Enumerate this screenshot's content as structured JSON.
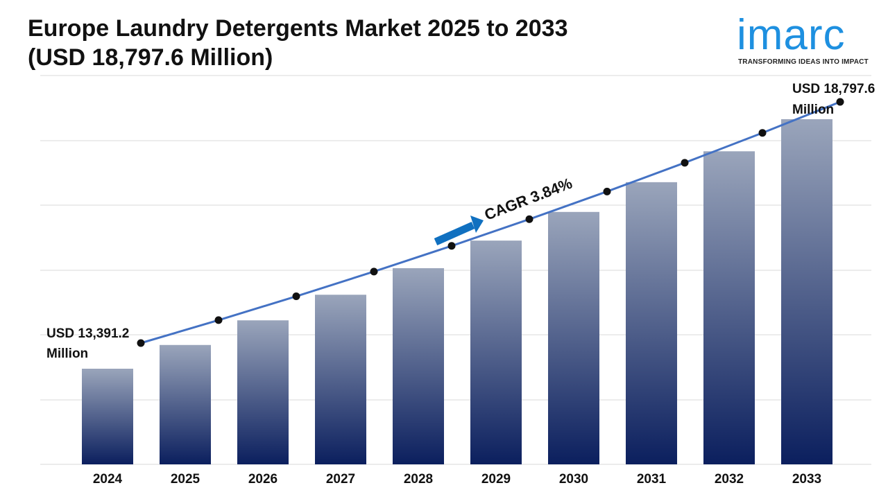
{
  "header": {
    "title_line1": "Europe Laundry Detergents Market 2025 to 2033",
    "title_line2": "(USD 18,797.6 Million)"
  },
  "logo": {
    "wordmark": "imarc",
    "tagline": "TRANSFORMING IDEAS INTO IMPACT",
    "color": "#1e90e0"
  },
  "chart_data": {
    "type": "bar",
    "title": "Europe Laundry Detergents Market 2025 to 2033 (USD 18,797.6 Million)",
    "categories": [
      "2024",
      "2025",
      "2026",
      "2027",
      "2028",
      "2029",
      "2030",
      "2031",
      "2032",
      "2033"
    ],
    "series": [
      {
        "values": [
          13391.2,
          13905.4,
          14439.4,
          14993.9,
          15569.6,
          16167.5,
          16788.3,
          17433.0,
          18102.4,
          18797.6
        ]
      }
    ],
    "trend_line": {
      "values": [
        13391.2,
        13905.4,
        14439.4,
        14993.9,
        15569.6,
        16167.5,
        16788.3,
        17433.0,
        18102.4,
        18797.6
      ],
      "color": "#4472c4"
    },
    "annotations": {
      "start_label_line1": "USD 13,391.2",
      "start_label_line2": "Million",
      "end_label_line1": "USD 18,797.6",
      "end_label_line2": "Million",
      "cagr_label": "CAGR 3.84%"
    },
    "xlabel": "",
    "ylabel": "",
    "grid": true,
    "legend": "none",
    "colors": {
      "bar_top": "#9aa5bb",
      "bar_bottom": "#0b1f5e",
      "arrow": "#1070c0",
      "gridline": "#d9d9d9",
      "marker": "#111111"
    }
  }
}
